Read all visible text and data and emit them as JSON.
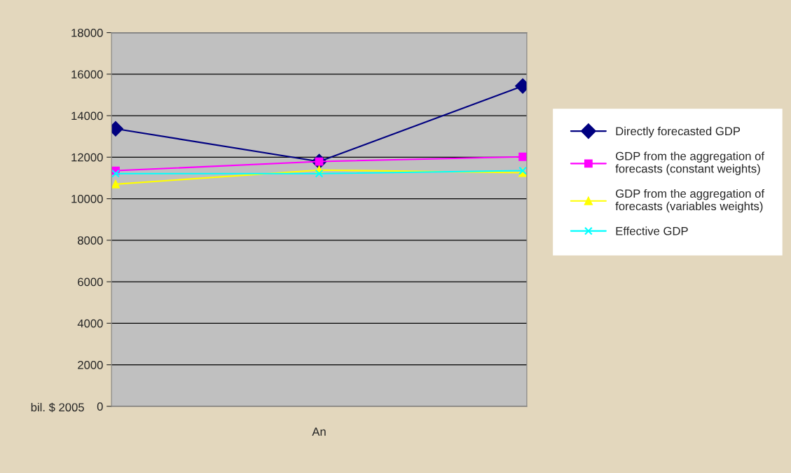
{
  "chart_data": {
    "type": "line",
    "xlabel": "An",
    "ylabel": "bil. $ 2005",
    "categories": [
      null,
      null,
      null
    ],
    "series": [
      {
        "name": "Directly forecasted GDP",
        "color": "#000080",
        "marker": "diamond",
        "values": [
          13370,
          11790,
          15430
        ]
      },
      {
        "name": "GDP from the aggregation of forecasts (constant weights)",
        "color": "#ff00ff",
        "marker": "square",
        "values": [
          11350,
          11790,
          12020
        ]
      },
      {
        "name": "GDP from the aggregation of forecasts (variables weights)",
        "color": "#ffff00",
        "marker": "triangle",
        "values": [
          10700,
          11380,
          11250
        ]
      },
      {
        "name": "Effective GDP",
        "color": "#00ffff",
        "marker": "cross",
        "values": [
          11210,
          11210,
          11350
        ]
      }
    ],
    "ylim": [
      0,
      18000
    ],
    "yticks": [
      0,
      2000,
      4000,
      6000,
      8000,
      10000,
      12000,
      14000,
      16000,
      18000
    ],
    "grid": "y",
    "legend": "right"
  }
}
